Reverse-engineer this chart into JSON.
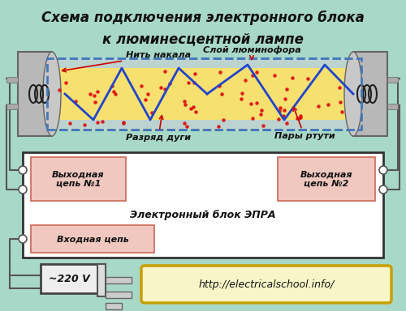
{
  "title_line1": "Схема подключения электронного блока",
  "title_line2": "к люминесцентной лампе",
  "bg_color": "#a8d8c8",
  "label_nit": "Нить накала",
  "label_sloy": "Слой люминофора",
  "label_razryad": "Разряд дуги",
  "label_pary": "Пары ртути",
  "label_vyhod1": "Выходная\nцепь №1",
  "label_vyhod2": "Выходная\nцепь №2",
  "label_epra": "Электронный блок ЭПРА",
  "label_vhod": "Входная цепь",
  "label_voltage": "~220 V",
  "label_url": "http://electricalschool.info/",
  "tube_bg": "#f5e070",
  "box_bg": "#ffffff",
  "pink_box": "#f0c8c0",
  "url_box_bg": "#f8f5c8",
  "url_box_border": "#c8a000",
  "wire_color": "#555555",
  "tube_border": "#4477bb",
  "cap_color": "#b8b8b8",
  "cap_border": "#666666"
}
